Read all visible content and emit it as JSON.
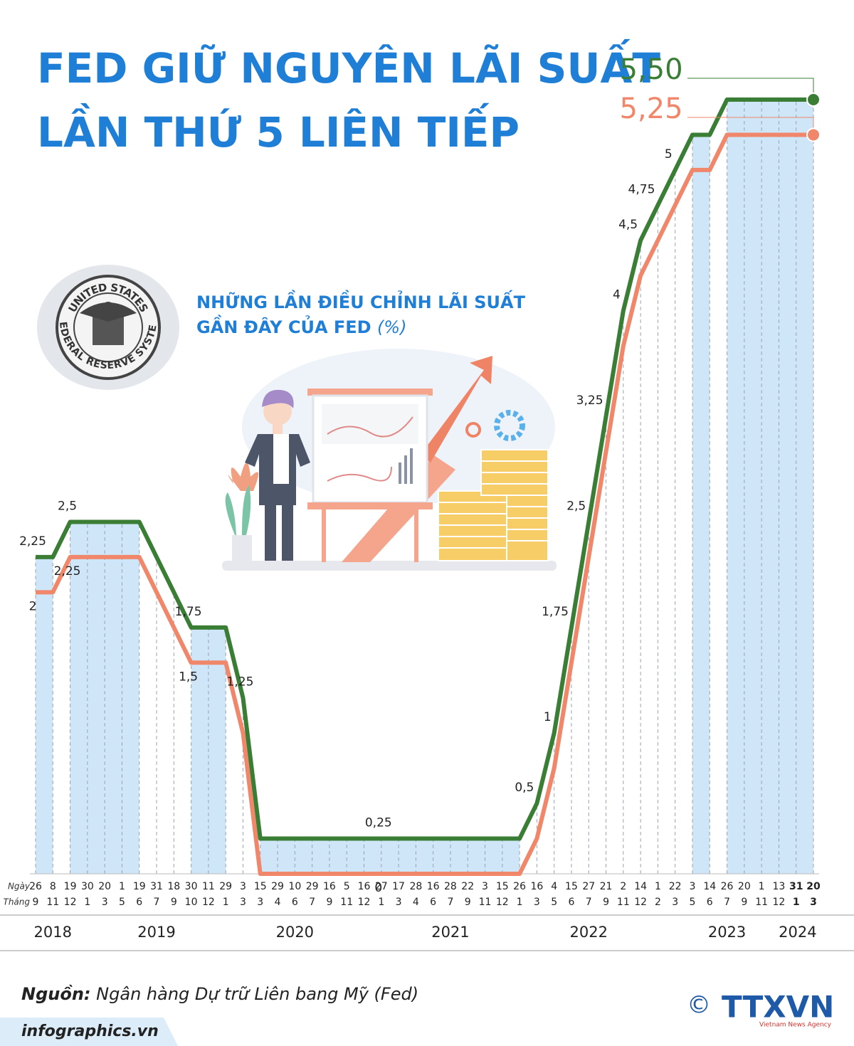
{
  "title": [
    "FED GIỮ NGUYÊN LÃI SUẤT",
    "LẦN THỨ 5 LIÊN TIẾP"
  ],
  "seal": {
    "top": "UNITED STATES",
    "bottom": "FEDERAL RESERVE SYSTEM"
  },
  "chart_data": {
    "type": "line",
    "subtitle": "NHỮNG LẦN ĐIỀU CHỈNH LÃI SUẤT",
    "subtitle_2": "GẦN ĐÂY CỦA FED",
    "unit": "(%)",
    "day_label": "Ngày",
    "month_label": "Tháng",
    "categories": [
      "26",
      "8",
      "19",
      "30",
      "20",
      "1",
      "19",
      "31",
      "18",
      "30",
      "11",
      "29",
      "3",
      "15",
      "29",
      "10",
      "29",
      "16",
      "5",
      "16",
      "27",
      "17",
      "28",
      "16",
      "28",
      "22",
      "3",
      "15",
      "26",
      "16",
      "4",
      "15",
      "27",
      "21",
      "2",
      "14",
      "1",
      "22",
      "3",
      "14",
      "26",
      "20",
      "1",
      "13",
      "31",
      "20"
    ],
    "months": [
      "9",
      "11",
      "12",
      "1",
      "3",
      "5",
      "6",
      "7",
      "9",
      "10",
      "12",
      "1",
      "3",
      "3",
      "4",
      "6",
      "7",
      "9",
      "11",
      "12",
      "1",
      "3",
      "4",
      "6",
      "7",
      "9",
      "11",
      "12",
      "1",
      "3",
      "5",
      "6",
      "7",
      "9",
      "11",
      "12",
      "2",
      "3",
      "5",
      "6",
      "7",
      "9",
      "11",
      "12",
      "1",
      "3"
    ],
    "years": [
      null,
      "2018",
      null,
      null,
      null,
      null,
      null,
      "2019",
      null,
      null,
      null,
      null,
      null,
      null,
      null,
      "2020",
      null,
      null,
      null,
      null,
      null,
      null,
      null,
      null,
      "2021",
      null,
      null,
      null,
      null,
      null,
      null,
      null,
      "2022",
      null,
      null,
      null,
      null,
      null,
      null,
      null,
      "2023",
      null,
      null,
      null,
      "2024",
      null
    ],
    "ylim": [
      0,
      5.5
    ],
    "series": [
      {
        "color": "#3a7d35",
        "values": [
          2.25,
          2.25,
          2.5,
          2.5,
          2.5,
          2.5,
          2.5,
          2.25,
          2,
          1.75,
          1.75,
          1.75,
          1.25,
          0.25,
          0.25,
          0.25,
          0.25,
          0.25,
          0.25,
          0.25,
          0.25,
          0.25,
          0.25,
          0.25,
          0.25,
          0.25,
          0.25,
          0.25,
          0.25,
          0.5,
          1,
          1.75,
          2.5,
          3.25,
          4,
          4.5,
          4.75,
          5,
          5.25,
          5.25,
          5.5,
          5.5,
          5.5,
          5.5,
          5.5,
          5.5
        ],
        "value_labels": [
          "2,25",
          null,
          "2,5",
          null,
          null,
          null,
          null,
          null,
          null,
          "1,75",
          null,
          null,
          "1,25",
          null,
          null,
          null,
          null,
          null,
          null,
          null,
          "0,25",
          null,
          null,
          null,
          null,
          null,
          null,
          null,
          null,
          "0,5",
          "1",
          "1,75",
          "2,5",
          "3,25",
          "4",
          "4,5",
          "4,75",
          "5",
          null,
          null,
          null,
          null,
          null,
          null,
          null,
          "5,50"
        ]
      },
      {
        "color": "#f0866a",
        "values": [
          2,
          2,
          2.25,
          2.25,
          2.25,
          2.25,
          2.25,
          2,
          1.75,
          1.5,
          1.5,
          1.5,
          1,
          0,
          0,
          0,
          0,
          0,
          0,
          0,
          0,
          0,
          0,
          0,
          0,
          0,
          0,
          0,
          0,
          0.25,
          0.75,
          1.5,
          2.25,
          3,
          3.75,
          4.25,
          4.5,
          4.75,
          5,
          5,
          5.25,
          5.25,
          5.25,
          5.25,
          5.25,
          5.25
        ],
        "value_labels": [
          "2",
          null,
          "2,25",
          null,
          null,
          null,
          null,
          null,
          null,
          "1,5",
          null,
          null,
          null,
          null,
          null,
          null,
          null,
          null,
          null,
          null,
          "0",
          null,
          null,
          null,
          null,
          null,
          null,
          null,
          null,
          null,
          null,
          null,
          null,
          null,
          null,
          null,
          null,
          null,
          null,
          null,
          null,
          null,
          null,
          null,
          null,
          "5,25"
        ]
      }
    ]
  },
  "footer": {
    "source_label": "Nguồn:",
    "source": "Ngân hàng Dự trữ Liên bang Mỹ (Fed)",
    "site": "infographics.vn",
    "copyright": "©",
    "logo": "TTXVN",
    "agency": "Vietnam News Agency"
  }
}
